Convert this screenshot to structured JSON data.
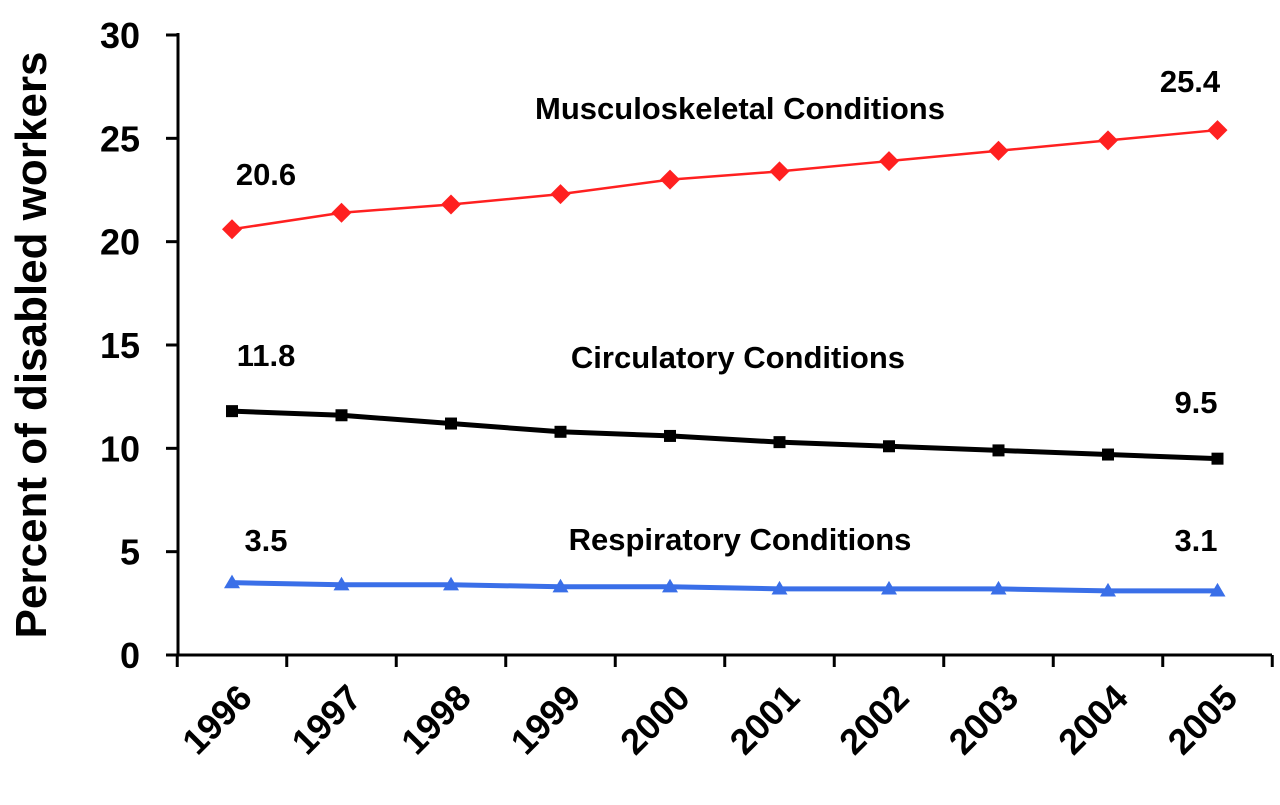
{
  "chart_data": {
    "type": "line",
    "ylabel": "Percent of disabled workers",
    "xlabel": "",
    "ylim": [
      0,
      30
    ],
    "yticks": [
      "0",
      "5",
      "10",
      "15",
      "20",
      "25",
      "30"
    ],
    "categories": [
      "1996",
      "1997",
      "1998",
      "1999",
      "2000",
      "2001",
      "2002",
      "2003",
      "2004",
      "2005"
    ],
    "grid": false,
    "series": [
      {
        "name": "Musculoskeletal Conditions",
        "color": "#ff2020",
        "marker": "diamond",
        "values": [
          20.6,
          21.4,
          21.8,
          22.3,
          23.0,
          23.4,
          23.9,
          24.4,
          24.9,
          25.4
        ],
        "start_label": "20.6",
        "end_label": "25.4"
      },
      {
        "name": "Circulatory Conditions",
        "color": "#000000",
        "marker": "square",
        "values": [
          11.8,
          11.6,
          11.2,
          10.8,
          10.6,
          10.3,
          10.1,
          9.9,
          9.7,
          9.5
        ],
        "start_label": "11.8",
        "end_label": "9.5"
      },
      {
        "name": "Respiratory Conditions",
        "color": "#3a6fe8",
        "marker": "triangle",
        "values": [
          3.5,
          3.4,
          3.4,
          3.3,
          3.3,
          3.2,
          3.2,
          3.2,
          3.1,
          3.1
        ],
        "start_label": "3.5",
        "end_label": "3.1"
      }
    ]
  }
}
